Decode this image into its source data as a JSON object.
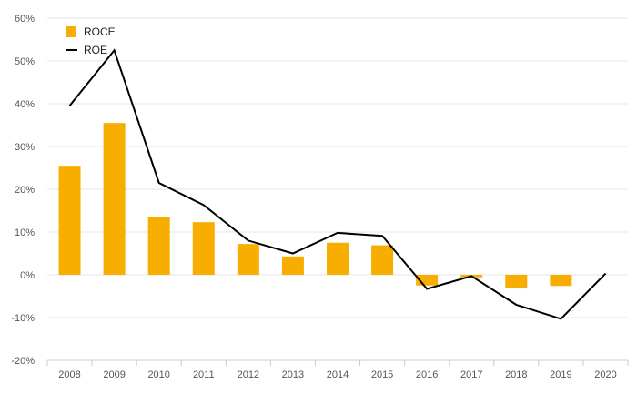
{
  "chart_data": {
    "type": "bar",
    "categories": [
      "2008",
      "2009",
      "2010",
      "2011",
      "2012",
      "2013",
      "2014",
      "2015",
      "2016",
      "2017",
      "2018",
      "2019",
      "2020"
    ],
    "series": [
      {
        "name": "ROCE",
        "type": "bar",
        "color": "#F7AE00",
        "values": [
          25.5,
          35.5,
          13.5,
          12.3,
          7.2,
          4.3,
          7.5,
          6.9,
          -2.5,
          -0.6,
          -3.2,
          -2.6,
          null
        ]
      },
      {
        "name": "ROE",
        "type": "line",
        "color": "#000000",
        "values": [
          39.5,
          52.5,
          21.5,
          16.3,
          8.0,
          5.0,
          9.8,
          9.1,
          -3.3,
          -0.3,
          -7.0,
          -10.3,
          0.3
        ]
      }
    ],
    "y_ticks": [
      "60%",
      "50%",
      "40%",
      "30%",
      "20%",
      "10%",
      "0%",
      "-10%",
      "-20%"
    ],
    "ylim": [
      -20,
      60
    ],
    "grid": true,
    "legend_position": "top-left",
    "title": "",
    "xlabel": "",
    "ylabel": ""
  }
}
